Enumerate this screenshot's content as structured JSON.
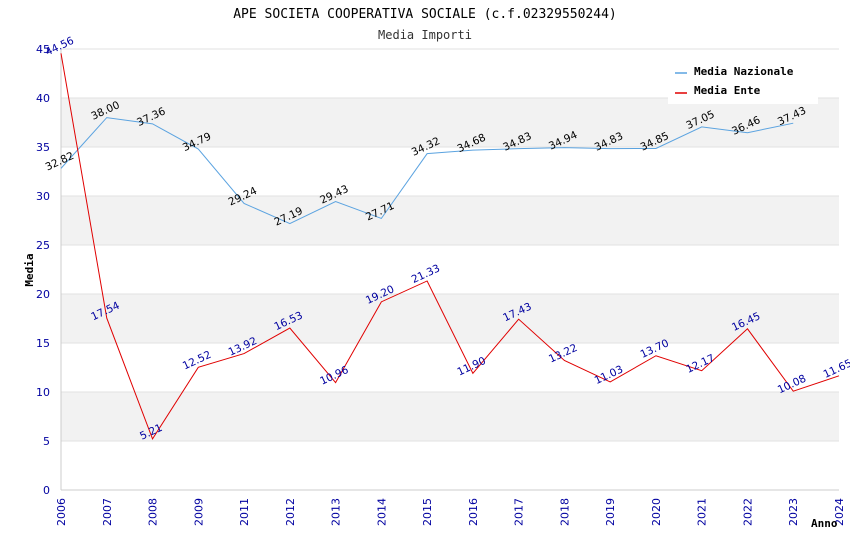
{
  "chart_data": {
    "type": "line",
    "title": "APE SOCIETA COOPERATIVA SOCIALE (c.f.02329550244)",
    "subtitle": "Media Importi",
    "xlabel": "Anno",
    "ylabel": "Media",
    "ylim": [
      0,
      45
    ],
    "yticks": [
      "0",
      "5",
      "10",
      "15",
      "20",
      "25",
      "30",
      "35",
      "40",
      "45"
    ],
    "categories": [
      "2006",
      "2007",
      "2008",
      "2009",
      "2011",
      "2012",
      "2013",
      "2014",
      "2015",
      "2016",
      "2017",
      "2018",
      "2019",
      "2020",
      "2021",
      "2022",
      "2023",
      "2024"
    ],
    "legend_position": "top-right",
    "grid": true,
    "series": [
      {
        "name": "Media Nazionale",
        "color": "#5ba3e0",
        "values": [
          32.82,
          38.0,
          37.36,
          34.79,
          29.24,
          27.19,
          29.43,
          27.71,
          34.32,
          34.68,
          34.83,
          34.94,
          34.83,
          34.85,
          37.05,
          36.46,
          37.43,
          null
        ],
        "labels": [
          "32.82",
          "38.00",
          "37.36",
          "34.79",
          "29.24",
          "27.19",
          "29.43",
          "27.71",
          "34.32",
          "34.68",
          "34.83",
          "34.94",
          "34.83",
          "34.85",
          "37.05",
          "36.46",
          "37.43",
          ""
        ]
      },
      {
        "name": "Media Ente",
        "color": "#e00000",
        "values": [
          44.56,
          17.54,
          5.21,
          12.52,
          13.92,
          16.53,
          10.96,
          19.2,
          21.33,
          11.9,
          17.43,
          13.22,
          11.03,
          13.7,
          12.17,
          16.45,
          10.08,
          11.65
        ],
        "labels": [
          "44.56",
          "17.54",
          "5.21",
          "12.52",
          "13.92",
          "16.53",
          "10.96",
          "19.20",
          "21.33",
          "11.90",
          "17.43",
          "13.22",
          "11.03",
          "13.70",
          "12.17",
          "16.45",
          "10.08",
          "11.65"
        ]
      }
    ]
  }
}
